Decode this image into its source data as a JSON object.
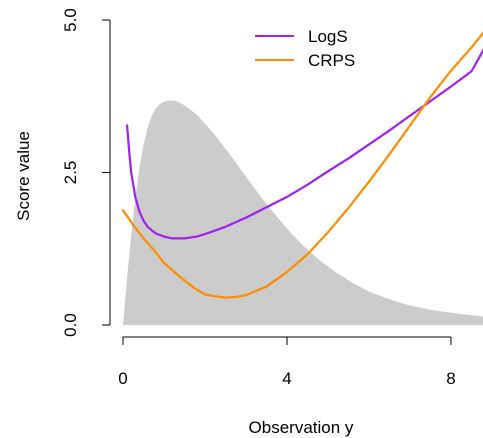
{
  "chart_data": {
    "type": "line",
    "title": "",
    "xlabel": "Observation y",
    "ylabel": "Score value",
    "xlim": [
      -0.2,
      8.8
    ],
    "ylim": [
      0.0,
      5.0
    ],
    "x_ticks": [
      "0",
      "4",
      "8"
    ],
    "y_ticks": [
      "0.0",
      "2.5",
      "5.0"
    ],
    "grid": false,
    "legend_position": "top",
    "background_density": {
      "fill_color": "#cccccc",
      "x": [
        0,
        0.1,
        0.2,
        0.3,
        0.4,
        0.5,
        0.6,
        0.7,
        0.8,
        0.9,
        1.0,
        1.1,
        1.2,
        1.3,
        1.4,
        1.5,
        1.6,
        1.8,
        2.0,
        2.2,
        2.4,
        2.6,
        2.8,
        3.0,
        3.3,
        3.6,
        4.0,
        4.4,
        4.8,
        5.2,
        5.6,
        6.0,
        6.5,
        7.0,
        7.5,
        8.0,
        8.5,
        8.8
      ],
      "y": [
        0.0,
        0.78,
        1.48,
        2.08,
        2.57,
        2.96,
        3.23,
        3.43,
        3.55,
        3.62,
        3.66,
        3.68,
        3.68,
        3.67,
        3.64,
        3.6,
        3.55,
        3.45,
        3.3,
        3.15,
        2.98,
        2.8,
        2.62,
        2.43,
        2.16,
        1.9,
        1.58,
        1.3,
        1.06,
        0.86,
        0.69,
        0.55,
        0.42,
        0.32,
        0.25,
        0.2,
        0.16,
        0.14
      ]
    },
    "series": [
      {
        "name": "LogS",
        "color": "#a020f0",
        "x": [
          0.1,
          0.15,
          0.2,
          0.3,
          0.4,
          0.5,
          0.6,
          0.8,
          1.0,
          1.2,
          1.5,
          1.8,
          2.0,
          2.5,
          3.0,
          3.5,
          4.0,
          4.5,
          5.0,
          5.5,
          6.0,
          6.5,
          7.0,
          7.5,
          8.0,
          8.5,
          8.8
        ],
        "y": [
          3.27,
          2.85,
          2.5,
          2.1,
          1.86,
          1.71,
          1.61,
          1.5,
          1.45,
          1.42,
          1.42,
          1.45,
          1.49,
          1.61,
          1.76,
          1.93,
          2.1,
          2.3,
          2.52,
          2.73,
          2.96,
          3.19,
          3.43,
          3.67,
          3.91,
          4.16,
          4.52
        ]
      },
      {
        "name": "CRPS",
        "color": "#ff8c00",
        "x": [
          0,
          0.25,
          0.5,
          0.75,
          1.0,
          1.25,
          1.5,
          1.75,
          2.0,
          2.25,
          2.5,
          2.75,
          3.0,
          3.5,
          4.0,
          4.5,
          5.0,
          5.5,
          6.0,
          6.5,
          7.0,
          7.5,
          8.0,
          8.5,
          8.8
        ],
        "y": [
          1.88,
          1.64,
          1.42,
          1.23,
          1.02,
          0.87,
          0.73,
          0.6,
          0.5,
          0.47,
          0.45,
          0.46,
          0.49,
          0.63,
          0.87,
          1.16,
          1.52,
          1.92,
          2.35,
          2.8,
          3.27,
          3.74,
          4.17,
          4.55,
          4.8
        ]
      }
    ]
  }
}
